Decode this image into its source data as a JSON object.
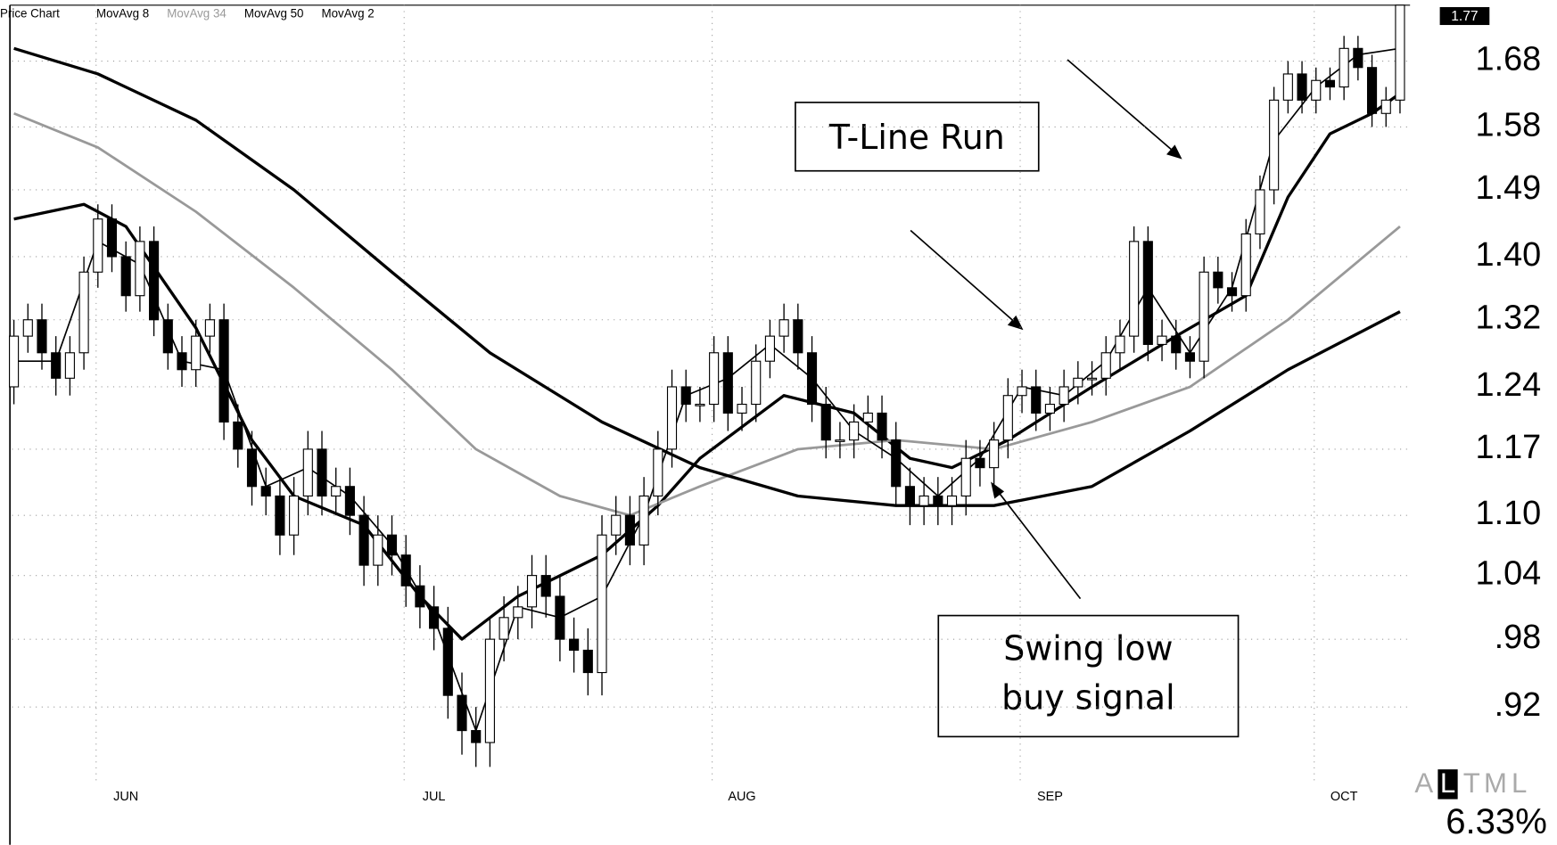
{
  "chart_data": {
    "type": "candlestick",
    "title": "Price Chart",
    "log_scale": true,
    "grid": true,
    "ylim": [
      0.86,
      1.77
    ],
    "yticks": [
      1.68,
      1.58,
      1.49,
      {
        "value": 1.4,
        "label": "1.40"
      },
      1.32,
      1.24,
      1.17,
      {
        "value": 1.1,
        "label": "1.10"
      },
      1.04,
      {
        "value": 0.98,
        "label": ".98"
      },
      {
        "value": 0.92,
        "label": ".92"
      }
    ],
    "categories": [
      null,
      null,
      null,
      null,
      null,
      null,
      null,
      null,
      "JUN",
      null,
      null,
      null,
      null,
      null,
      null,
      null,
      null,
      null,
      null,
      null,
      null,
      null,
      null,
      null,
      null,
      null,
      null,
      null,
      null,
      null,
      "JUL",
      null,
      null,
      null,
      null,
      null,
      null,
      null,
      null,
      null,
      null,
      null,
      null,
      null,
      null,
      null,
      null,
      null,
      null,
      null,
      null,
      null,
      "AUG",
      null,
      null,
      null,
      null,
      null,
      null,
      null,
      null,
      null,
      null,
      null,
      null,
      null,
      null,
      null,
      null,
      null,
      null,
      null,
      null,
      null,
      "SEP",
      null,
      null,
      null,
      null,
      null,
      null,
      null,
      null,
      null,
      null,
      null,
      null,
      null,
      null,
      null,
      null,
      null,
      null,
      null,
      null,
      "OCT",
      null,
      null,
      null,
      null
    ],
    "open": [
      1.24,
      1.3,
      1.32,
      1.28,
      1.25,
      1.28,
      1.38,
      1.45,
      1.4,
      1.35,
      1.42,
      1.32,
      1.28,
      1.26,
      1.3,
      1.32,
      1.2,
      1.17,
      1.13,
      1.12,
      1.08,
      1.12,
      1.17,
      1.12,
      1.13,
      1.1,
      1.05,
      1.08,
      1.06,
      1.03,
      1.01,
      0.99,
      0.93,
      0.9,
      0.89,
      0.98,
      1.0,
      1.01,
      1.04,
      1.02,
      0.98,
      0.97,
      0.95,
      1.08,
      1.1,
      1.07,
      1.12,
      1.17,
      1.24,
      1.22,
      1.22,
      1.28,
      1.21,
      1.22,
      1.27,
      1.3,
      1.32,
      1.28,
      1.22,
      1.18,
      1.18,
      1.2,
      1.21,
      1.18,
      1.13,
      1.11,
      1.12,
      1.11,
      1.12,
      1.16,
      1.15,
      1.18,
      1.23,
      1.24,
      1.21,
      1.22,
      1.24,
      1.25,
      1.25,
      1.28,
      1.3,
      1.42,
      1.29,
      1.3,
      1.28,
      1.27,
      1.38,
      1.36,
      1.35,
      1.43,
      1.49,
      1.62,
      1.66,
      1.62,
      1.65,
      1.64,
      1.7,
      1.67,
      1.6,
      1.62
    ],
    "high": [
      1.32,
      1.34,
      1.34,
      1.3,
      1.3,
      1.4,
      1.47,
      1.47,
      1.42,
      1.44,
      1.44,
      1.34,
      1.3,
      1.32,
      1.34,
      1.34,
      1.22,
      1.19,
      1.15,
      1.14,
      1.14,
      1.19,
      1.19,
      1.15,
      1.15,
      1.12,
      1.1,
      1.1,
      1.08,
      1.05,
      1.03,
      1.01,
      0.95,
      0.92,
      1.0,
      1.02,
      1.03,
      1.06,
      1.06,
      1.04,
      1.0,
      0.99,
      1.1,
      1.12,
      1.12,
      1.14,
      1.19,
      1.26,
      1.26,
      1.24,
      1.3,
      1.3,
      1.24,
      1.29,
      1.32,
      1.34,
      1.34,
      1.3,
      1.24,
      1.2,
      1.22,
      1.23,
      1.23,
      1.2,
      1.15,
      1.14,
      1.14,
      1.14,
      1.18,
      1.18,
      1.2,
      1.25,
      1.26,
      1.26,
      1.24,
      1.26,
      1.27,
      1.27,
      1.3,
      1.32,
      1.44,
      1.44,
      1.32,
      1.32,
      1.3,
      1.4,
      1.4,
      1.38,
      1.45,
      1.51,
      1.64,
      1.68,
      1.68,
      1.67,
      1.67,
      1.72,
      1.72,
      1.69,
      1.64,
      1.77
    ],
    "low": [
      1.22,
      1.28,
      1.26,
      1.23,
      1.23,
      1.26,
      1.36,
      1.38,
      1.33,
      1.33,
      1.3,
      1.26,
      1.24,
      1.24,
      1.28,
      1.18,
      1.15,
      1.11,
      1.1,
      1.06,
      1.06,
      1.1,
      1.1,
      1.1,
      1.08,
      1.03,
      1.03,
      1.04,
      1.01,
      0.99,
      0.97,
      0.91,
      0.88,
      0.87,
      0.87,
      0.96,
      0.98,
      0.99,
      1.0,
      0.96,
      0.95,
      0.93,
      0.93,
      1.06,
      1.05,
      1.05,
      1.1,
      1.15,
      1.2,
      1.2,
      1.2,
      1.19,
      1.19,
      1.2,
      1.25,
      1.28,
      1.26,
      1.2,
      1.16,
      1.16,
      1.16,
      1.18,
      1.16,
      1.11,
      1.09,
      1.09,
      1.09,
      1.09,
      1.1,
      1.13,
      1.13,
      1.16,
      1.21,
      1.19,
      1.19,
      1.2,
      1.22,
      1.23,
      1.23,
      1.26,
      1.28,
      1.27,
      1.27,
      1.26,
      1.25,
      1.25,
      1.34,
      1.33,
      1.33,
      1.41,
      1.47,
      1.6,
      1.6,
      1.6,
      1.62,
      1.62,
      1.65,
      1.58,
      1.58,
      1.6
    ],
    "close": [
      1.3,
      1.32,
      1.28,
      1.25,
      1.28,
      1.38,
      1.45,
      1.4,
      1.35,
      1.42,
      1.32,
      1.28,
      1.26,
      1.3,
      1.32,
      1.2,
      1.17,
      1.13,
      1.12,
      1.08,
      1.12,
      1.17,
      1.12,
      1.13,
      1.1,
      1.05,
      1.08,
      1.06,
      1.03,
      1.01,
      0.99,
      0.93,
      0.9,
      0.89,
      0.98,
      1.0,
      1.01,
      1.04,
      1.02,
      0.98,
      0.97,
      0.95,
      1.08,
      1.1,
      1.07,
      1.12,
      1.17,
      1.24,
      1.22,
      1.22,
      1.28,
      1.21,
      1.22,
      1.27,
      1.3,
      1.32,
      1.28,
      1.22,
      1.18,
      1.18,
      1.2,
      1.21,
      1.18,
      1.13,
      1.11,
      1.12,
      1.11,
      1.12,
      1.16,
      1.15,
      1.18,
      1.23,
      1.24,
      1.21,
      1.22,
      1.24,
      1.25,
      1.25,
      1.28,
      1.3,
      1.42,
      1.29,
      1.3,
      1.28,
      1.27,
      1.38,
      1.36,
      1.35,
      1.43,
      1.49,
      1.62,
      1.66,
      1.62,
      1.65,
      1.64,
      1.7,
      1.67,
      1.6,
      1.62,
      1.77
    ],
    "last_value": 1.77,
    "series": [
      {
        "name": "MovAvg 8",
        "color": "#000000",
        "x": [
          0,
          5,
          8,
          13,
          17,
          20,
          25,
          29,
          32,
          36,
          42,
          46,
          49,
          55,
          60,
          64,
          67,
          71,
          77,
          83,
          88,
          91,
          94,
          97,
          99
        ],
        "values": [
          1.45,
          1.47,
          1.44,
          1.31,
          1.18,
          1.12,
          1.09,
          1.02,
          0.98,
          1.02,
          1.06,
          1.11,
          1.16,
          1.23,
          1.21,
          1.16,
          1.15,
          1.18,
          1.24,
          1.3,
          1.35,
          1.48,
          1.57,
          1.6,
          1.63
        ]
      },
      {
        "name": "MovAvg 34",
        "color": "#999999",
        "x": [
          0,
          6,
          13,
          20,
          27,
          33,
          39,
          44,
          49,
          56,
          63,
          70,
          77,
          84,
          91,
          99
        ],
        "values": [
          1.6,
          1.55,
          1.46,
          1.36,
          1.26,
          1.17,
          1.12,
          1.1,
          1.13,
          1.17,
          1.18,
          1.17,
          1.2,
          1.24,
          1.32,
          1.44
        ]
      },
      {
        "name": "MovAvg 50",
        "color": "#000000",
        "x": [
          0,
          6,
          13,
          20,
          27,
          34,
          42,
          49,
          56,
          63,
          70,
          77,
          84,
          91,
          99
        ],
        "values": [
          1.7,
          1.66,
          1.59,
          1.49,
          1.38,
          1.28,
          1.2,
          1.15,
          1.12,
          1.11,
          1.11,
          1.13,
          1.19,
          1.26,
          1.33
        ]
      },
      {
        "name": "MovAvg 2",
        "color": "#000000",
        "x": [
          0,
          3,
          6,
          9,
          12,
          15,
          18,
          21,
          24,
          27,
          30,
          33,
          36,
          39,
          42,
          45,
          48,
          51,
          54,
          57,
          60,
          63,
          66,
          69,
          72,
          75,
          78,
          81,
          84,
          87,
          90,
          93,
          96,
          99
        ],
        "values": [
          1.27,
          1.27,
          1.42,
          1.39,
          1.27,
          1.26,
          1.13,
          1.15,
          1.12,
          1.07,
          1.0,
          0.9,
          1.01,
          1.0,
          1.02,
          1.1,
          1.23,
          1.25,
          1.29,
          1.25,
          1.19,
          1.16,
          1.12,
          1.16,
          1.24,
          1.23,
          1.27,
          1.36,
          1.28,
          1.36,
          1.56,
          1.64,
          1.69,
          1.7
        ]
      }
    ],
    "annotations": [
      "T-Line Run",
      "Swing low buy signal"
    ]
  },
  "toolbar": {
    "scales": [
      "A",
      "L",
      "T",
      "M",
      "L"
    ],
    "change": "6.33%"
  }
}
